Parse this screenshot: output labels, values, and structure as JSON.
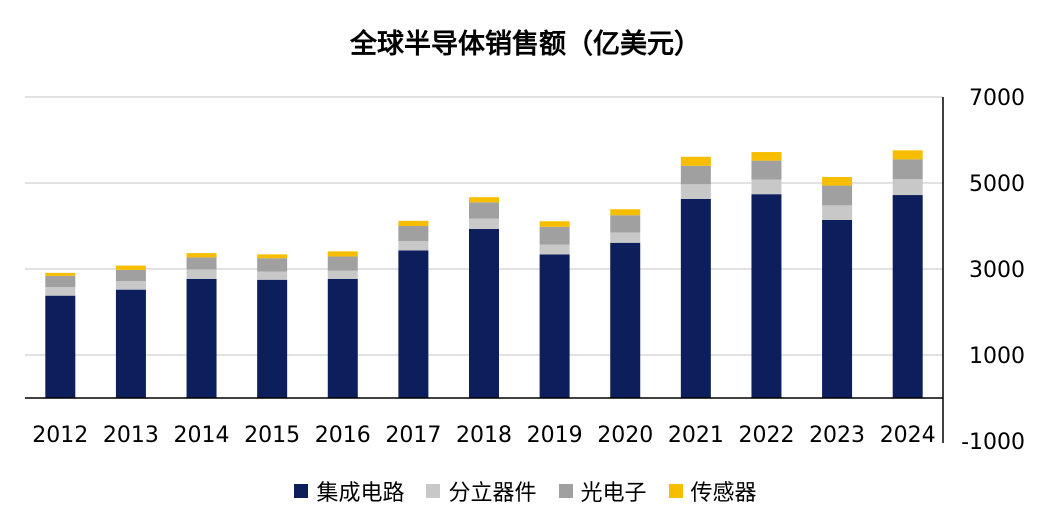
{
  "chart_data": {
    "type": "bar",
    "stacked": true,
    "title": "全球半导体销售额（亿美元）",
    "categories": [
      "2012",
      "2013",
      "2014",
      "2015",
      "2016",
      "2017",
      "2018",
      "2019",
      "2020",
      "2021",
      "2022",
      "2023",
      "2024"
    ],
    "series": [
      {
        "name": "集成电路",
        "color": "#0c1f5c",
        "values": [
          2380,
          2520,
          2770,
          2750,
          2770,
          3430,
          3930,
          3340,
          3610,
          4630,
          4740,
          4140,
          4720
        ]
      },
      {
        "name": "分立器件",
        "color": "#c8c8c8",
        "values": [
          200,
          200,
          220,
          190,
          190,
          220,
          240,
          230,
          240,
          340,
          340,
          340,
          370
        ]
      },
      {
        "name": "光电子",
        "color": "#a0a0a0",
        "values": [
          260,
          260,
          280,
          310,
          330,
          350,
          380,
          410,
          400,
          430,
          440,
          460,
          460
        ]
      },
      {
        "name": "传感器",
        "color": "#f7be00",
        "values": [
          70,
          100,
          100,
          90,
          120,
          120,
          120,
          130,
          140,
          210,
          200,
          200,
          210
        ]
      }
    ],
    "y_axis": {
      "position": "right",
      "ticks": [
        -1000,
        1000,
        3000,
        5000,
        7000
      ],
      "ylim": [
        -1000,
        7000
      ]
    },
    "grid": true,
    "legend_position": "bottom"
  }
}
